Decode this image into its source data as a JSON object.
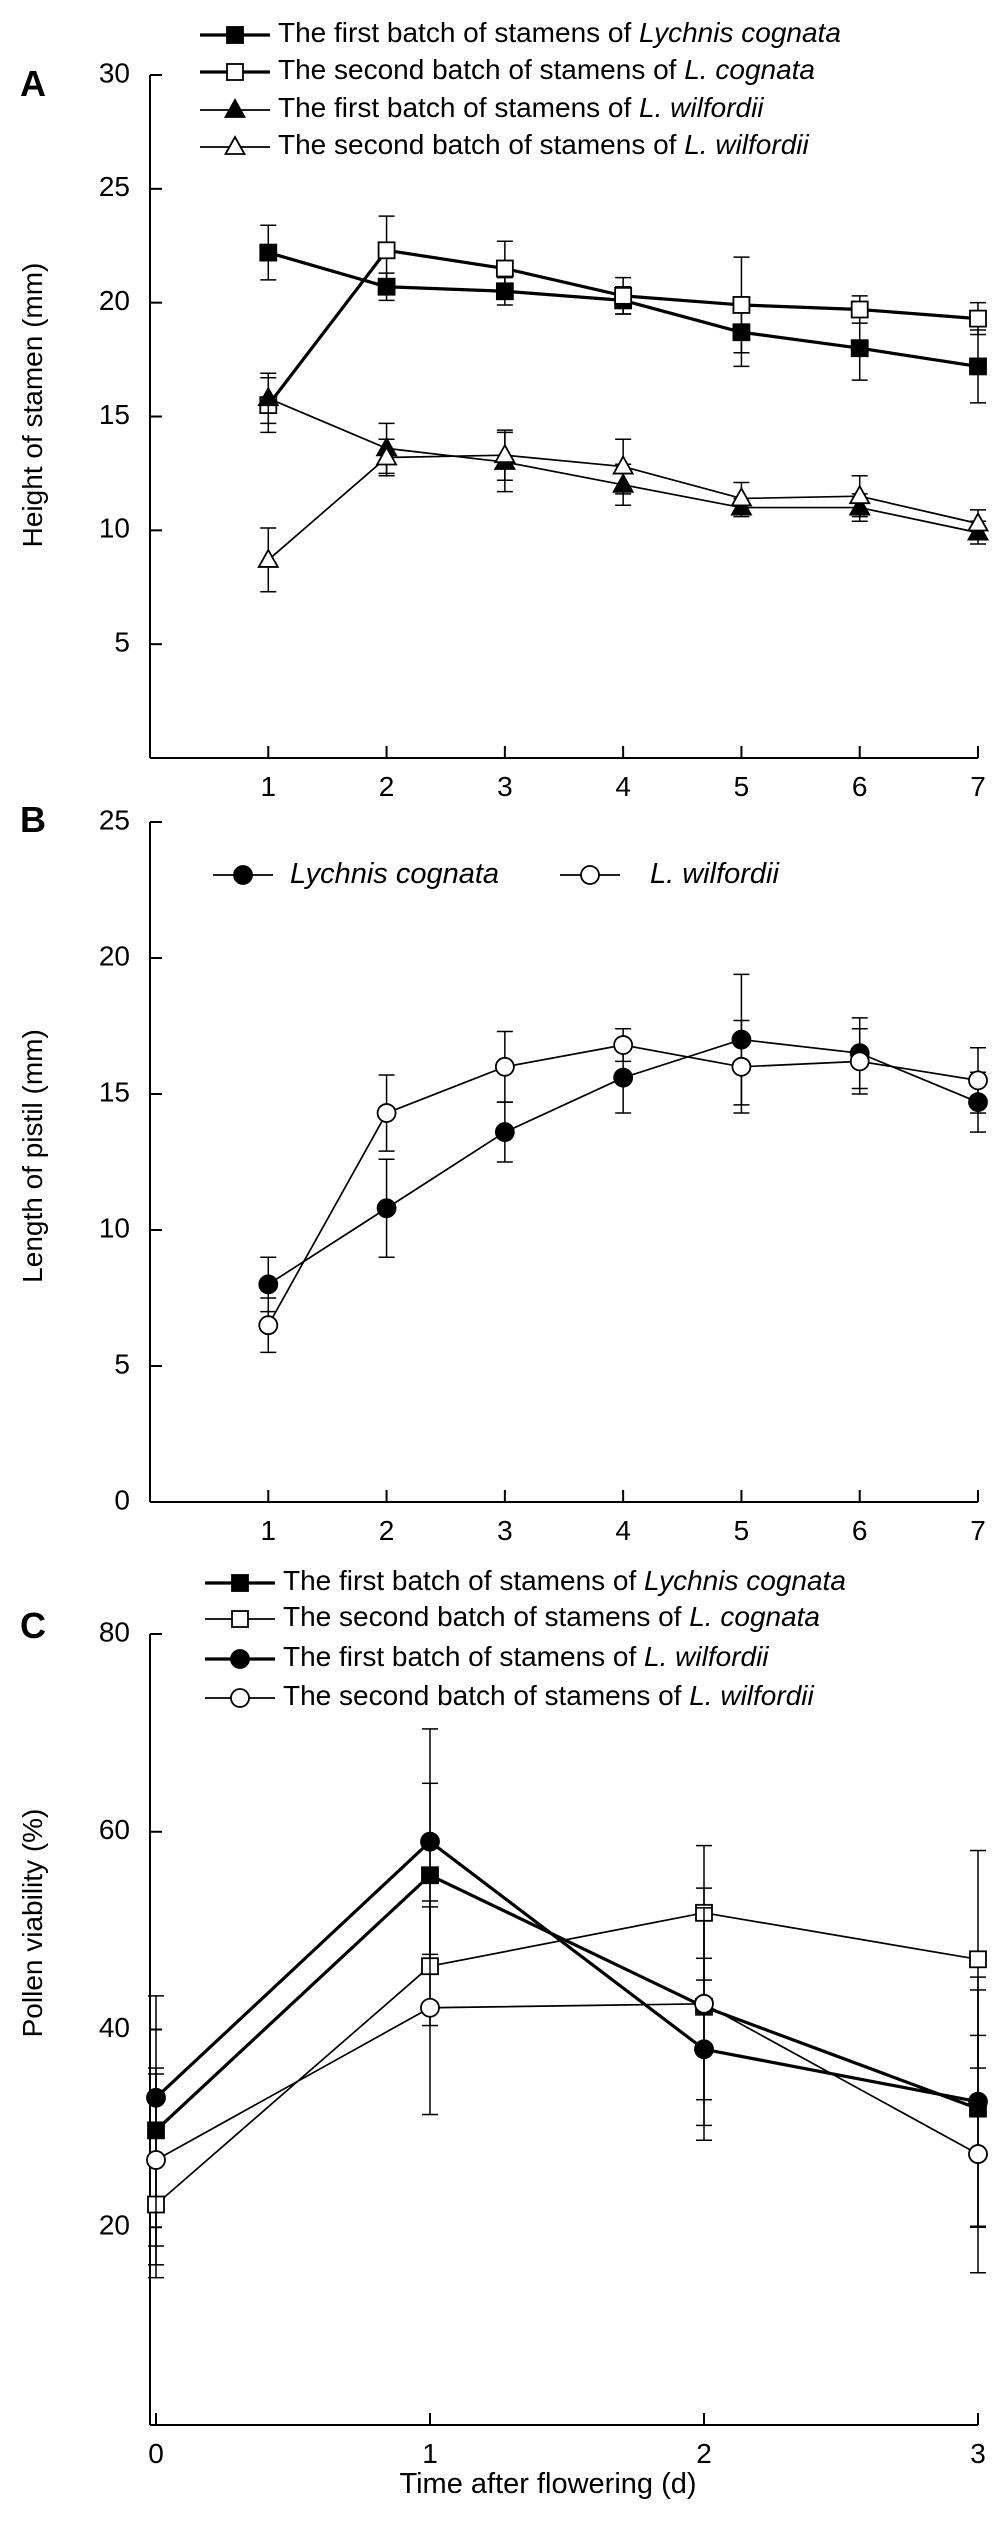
{
  "figure": {
    "xlabel_bottom": "Time after flowering (d)"
  },
  "chart_data": [
    {
      "panel_label": "A",
      "type": "line",
      "xlabel": "",
      "ylabel": "Height of stamen (mm)",
      "xlim": [
        0,
        7
      ],
      "ylim": [
        0,
        30
      ],
      "xticks": [
        1,
        2,
        3,
        4,
        5,
        6,
        7
      ],
      "yticks": [
        5,
        10,
        15,
        20,
        25,
        30
      ],
      "x": [
        1,
        2,
        3,
        4,
        5,
        6,
        7
      ],
      "legend_position": "top",
      "series": [
        {
          "name": "The first batch of stamens of ",
          "name_italic": "Lychnis cognata",
          "marker": "square-filled",
          "line": "thick",
          "values": [
            22.2,
            20.7,
            20.5,
            20.1,
            18.7,
            18.0,
            17.2
          ],
          "errors": [
            1.2,
            0.6,
            0.6,
            0.6,
            1.5,
            1.4,
            1.6
          ]
        },
        {
          "name": "The second batch of stamens of ",
          "name_italic": "L. cognata",
          "marker": "square-open",
          "line": "thick",
          "values": [
            15.5,
            22.3,
            21.5,
            20.3,
            19.9,
            19.7,
            19.3
          ],
          "errors": [
            1.2,
            1.5,
            1.2,
            0.8,
            2.1,
            0.6,
            0.7
          ]
        },
        {
          "name": "The first batch of stamens of ",
          "name_italic": "L. wilfordii",
          "marker": "triangle-filled",
          "line": "thin",
          "values": [
            15.8,
            13.6,
            13.0,
            12.0,
            11.0,
            11.0,
            9.9
          ],
          "errors": [
            1.1,
            1.1,
            1.3,
            0.9,
            0.4,
            0.6,
            0.5
          ]
        },
        {
          "name": "The second batch of stamens of ",
          "name_italic": "L. wilfordii",
          "marker": "triangle-open",
          "line": "thin",
          "values": [
            8.7,
            13.2,
            13.3,
            12.8,
            11.4,
            11.5,
            10.3
          ],
          "errors": [
            1.4,
            0.8,
            1.1,
            1.2,
            0.7,
            0.9,
            0.6
          ]
        }
      ]
    },
    {
      "panel_label": "B",
      "type": "line",
      "xlabel": "",
      "ylabel": "Length of pistil (mm)",
      "xlim": [
        0,
        7
      ],
      "ylim": [
        0,
        25
      ],
      "xticks": [
        1,
        2,
        3,
        4,
        5,
        6,
        7
      ],
      "yticks": [
        0,
        5,
        10,
        15,
        20,
        25
      ],
      "x": [
        1,
        2,
        3,
        4,
        5,
        6,
        7
      ],
      "legend_position": "top",
      "series": [
        {
          "name": "",
          "name_italic": "Lychnis cognata",
          "marker": "circle-filled",
          "line": "thin",
          "values": [
            8.0,
            10.8,
            13.6,
            15.6,
            17.0,
            16.5,
            14.7
          ],
          "errors": [
            1.0,
            1.8,
            1.1,
            1.3,
            2.4,
            1.3,
            1.1
          ]
        },
        {
          "name": "",
          "name_italic": "L. wilfordii",
          "marker": "circle-open",
          "line": "thin",
          "values": [
            6.5,
            14.3,
            16.0,
            16.8,
            16.0,
            16.2,
            15.5
          ],
          "errors": [
            1.0,
            1.4,
            1.3,
            0.6,
            1.7,
            1.2,
            1.2
          ]
        }
      ]
    },
    {
      "panel_label": "C",
      "type": "line",
      "xlabel": "Time after flowering (d)",
      "ylabel": "Pollen viability (%)",
      "xlim": [
        0,
        3
      ],
      "ylim": [
        0,
        80
      ],
      "xticks": [
        0,
        1,
        2,
        3
      ],
      "yticks": [
        20,
        40,
        60,
        80
      ],
      "x": [
        0,
        1,
        2,
        3
      ],
      "legend_position": "top",
      "series": [
        {
          "name": "The first batch of stamens of ",
          "name_italic": "Lychnis cognata",
          "marker": "square-filled",
          "line": "thick",
          "values": [
            29.8,
            55.6,
            42.3,
            32.0
          ],
          "errors": [
            13.6,
            9.3,
            12.0,
            12.0
          ]
        },
        {
          "name": "The second batch of stamens of ",
          "name_italic": "L. cognata",
          "marker": "square-open",
          "line": "thin",
          "values": [
            22.3,
            46.4,
            51.8,
            47.1
          ],
          "errors": [
            7.4,
            6.0,
            6.8,
            11.0
          ]
        },
        {
          "name": "The first batch of stamens of ",
          "name_italic": "L. wilfordii",
          "marker": "circle-filled",
          "line": "thick",
          "values": [
            33.1,
            59.0,
            38.0,
            32.7
          ],
          "errors": [
            3.0,
            11.4,
            9.2,
            12.6
          ]
        },
        {
          "name": "The second batch of stamens of ",
          "name_italic": "L. wilfordii",
          "marker": "circle-open",
          "line": "thin",
          "values": [
            26.8,
            42.2,
            42.6,
            27.4
          ],
          "errors": [
            8.7,
            10.8,
            9.7,
            12.0
          ]
        }
      ]
    }
  ]
}
